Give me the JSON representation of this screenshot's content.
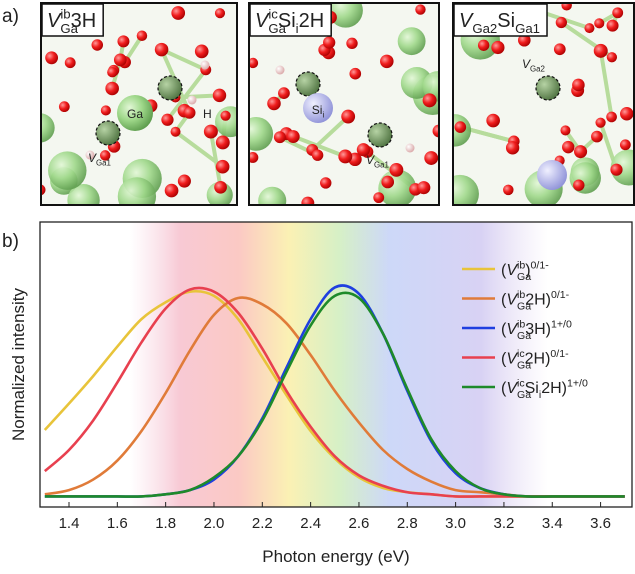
{
  "panel_labels": [
    "a)",
    "b)"
  ],
  "structures": [
    {
      "label": [
        {
          "text": "V",
          "style": "italic"
        },
        {
          "text": "Ga",
          "style": "sub"
        },
        {
          "text": "ib",
          "style": "sup"
        },
        {
          "text": "3H",
          "style": "normal"
        }
      ],
      "annotations": [
        [
          {
            "text": "Ga",
            "style": "normal"
          }
        ],
        [
          {
            "text": "H",
            "style": "normal"
          }
        ],
        [
          {
            "text": "V",
            "style": "italic"
          },
          {
            "text": "Ga1",
            "style": "sub"
          }
        ]
      ]
    },
    {
      "label": [
        {
          "text": "V",
          "style": "italic"
        },
        {
          "text": "Ga",
          "style": "sub"
        },
        {
          "text": "ic",
          "style": "sup"
        },
        {
          "text": "Si",
          "style": "normal"
        },
        {
          "text": "i",
          "style": "sub"
        },
        {
          "text": "2H",
          "style": "normal"
        }
      ],
      "annotations": [
        [
          {
            "text": "Si",
            "style": "normal"
          },
          {
            "text": "i",
            "style": "sub"
          }
        ],
        [
          {
            "text": "V",
            "style": "italic"
          },
          {
            "text": "Ga1",
            "style": "sub"
          }
        ]
      ]
    },
    {
      "label": [
        {
          "text": "V",
          "style": "italic"
        },
        {
          "text": "Ga2",
          "style": "sub"
        },
        {
          "text": "Si",
          "style": "normal"
        },
        {
          "text": "Ga1",
          "style": "sub"
        }
      ],
      "annotations": [
        [
          {
            "text": "V",
            "style": "italic"
          },
          {
            "text": "Ga2",
            "style": "sub"
          }
        ]
      ]
    }
  ],
  "chart_data": {
    "type": "line",
    "x_label": "Photon energy (eV)",
    "y_label": "Normalized intensity",
    "x": [
      1.3,
      1.4,
      1.5,
      1.6,
      1.7,
      1.8,
      1.9,
      2.0,
      2.1,
      2.2,
      2.3,
      2.4,
      2.5,
      2.6,
      2.7,
      2.8,
      2.9,
      3.0,
      3.1,
      3.2,
      3.3,
      3.4,
      3.5,
      3.6,
      3.7
    ],
    "xlim": [
      1.28,
      3.73
    ],
    "ylim": [
      -0.05,
      1.3
    ],
    "xticks": [
      1.4,
      1.6,
      1.8,
      {
        "value": 2,
        "label": "2.0"
      },
      2.2,
      2.4,
      2.6,
      2.8,
      {
        "value": 3,
        "label": "3.0"
      },
      3.2,
      3.4,
      3.6
    ],
    "legend": "upper right",
    "series": [
      {
        "name": [
          {
            "text": "(",
            "style": "normal"
          },
          {
            "text": "V",
            "style": "italic"
          },
          {
            "text": "Ga",
            "style": "sub"
          },
          {
            "text": "ib",
            "style": "sup"
          },
          {
            "text": ")",
            "style": "normal"
          },
          {
            "text": "0/1-",
            "style": "sup"
          }
        ],
        "color": "#e8c43a",
        "values": [
          0.315,
          0.44,
          0.57,
          0.71,
          0.84,
          0.92,
          0.97,
          0.95,
          0.84,
          0.66,
          0.48,
          0.31,
          0.18,
          0.09,
          0.04,
          0.02,
          0.01,
          0,
          0,
          0,
          0,
          0,
          0,
          0,
          0
        ]
      },
      {
        "name": [
          {
            "text": "(",
            "style": "normal"
          },
          {
            "text": "V",
            "style": "italic"
          },
          {
            "text": "Ga",
            "style": "sub"
          },
          {
            "text": "ib",
            "style": "sup"
          },
          {
            "text": "2H)",
            "style": "normal"
          },
          {
            "text": "0/1-",
            "style": "sup"
          }
        ],
        "color": "#e07b39",
        "values": [
          0.01,
          0.03,
          0.08,
          0.17,
          0.31,
          0.49,
          0.69,
          0.86,
          0.94,
          0.91,
          0.82,
          0.67,
          0.5,
          0.35,
          0.22,
          0.13,
          0.07,
          0.03,
          0.02,
          0.01,
          0,
          0,
          0,
          0,
          0
        ]
      },
      {
        "name": [
          {
            "text": "(",
            "style": "normal"
          },
          {
            "text": "V",
            "style": "italic"
          },
          {
            "text": "Ga",
            "style": "sub"
          },
          {
            "text": "ib",
            "style": "sup"
          },
          {
            "text": "3H)",
            "style": "normal"
          },
          {
            "text": "1+/0",
            "style": "sup"
          }
        ],
        "color": "#1f3fe0",
        "values": [
          0,
          0,
          0,
          0,
          0,
          0.01,
          0.03,
          0.08,
          0.19,
          0.37,
          0.61,
          0.84,
          0.99,
          0.96,
          0.77,
          0.5,
          0.26,
          0.11,
          0.04,
          0.01,
          0,
          0,
          0,
          0,
          0
        ]
      },
      {
        "name": [
          {
            "text": "(",
            "style": "normal"
          },
          {
            "text": "V",
            "style": "italic"
          },
          {
            "text": "Ga",
            "style": "sub"
          },
          {
            "text": "ic",
            "style": "sup"
          },
          {
            "text": "2H)",
            "style": "normal"
          },
          {
            "text": "0/1-",
            "style": "sup"
          }
        ],
        "color": "#e8404f",
        "values": [
          0.12,
          0.22,
          0.36,
          0.54,
          0.73,
          0.89,
          0.98,
          0.97,
          0.87,
          0.7,
          0.5,
          0.33,
          0.19,
          0.1,
          0.05,
          0.02,
          0.01,
          0,
          0,
          0,
          0,
          0,
          0,
          0,
          0
        ]
      },
      {
        "name": [
          {
            "text": "(",
            "style": "normal"
          },
          {
            "text": "V",
            "style": "italic"
          },
          {
            "text": "Ga",
            "style": "sub"
          },
          {
            "text": "ic",
            "style": "sup"
          },
          {
            "text": "Si",
            "style": "normal"
          },
          {
            "text": "i",
            "style": "sub"
          },
          {
            "text": "2H)",
            "style": "normal"
          },
          {
            "text": "1+/0",
            "style": "sup"
          }
        ],
        "color": "#1e8a2a",
        "values": [
          0,
          0,
          0,
          0,
          0,
          0.01,
          0.03,
          0.09,
          0.19,
          0.36,
          0.59,
          0.81,
          0.95,
          0.94,
          0.77,
          0.51,
          0.27,
          0.12,
          0.04,
          0.01,
          0,
          0,
          0,
          0,
          0
        ]
      }
    ]
  }
}
